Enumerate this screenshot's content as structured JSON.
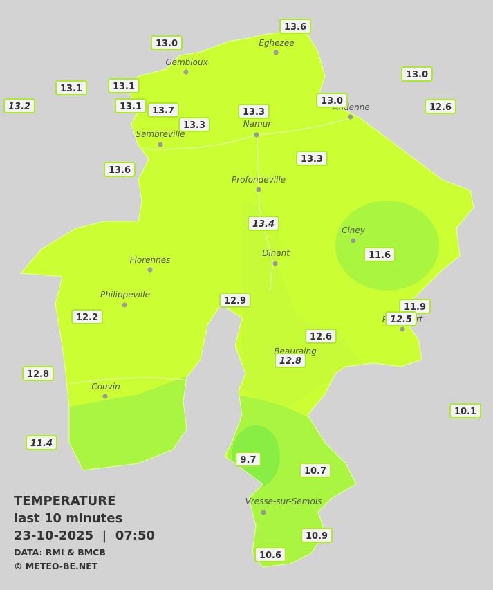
{
  "legend": {
    "title": "TEMPERATURE",
    "subtitle": "last 10 minutes",
    "datetime": "23-10-2025  |  07:50",
    "source": "DATA: RMI & BMCB",
    "copyright": "© METEO-BE.NET"
  },
  "towns": [
    "Eghezee",
    "Gembloux",
    "Andenne",
    "Namur",
    "Sambreville",
    "Profondeville",
    "Ciney",
    "Dinant",
    "Florennes",
    "Philippeville",
    "Beauraing",
    "Rochefort",
    "Couvin",
    "Vresse-sur-Semois"
  ],
  "stations": [
    "13.0",
    "13.6",
    "13.1",
    "13.1",
    "13.2",
    "13.1",
    "13.7",
    "13.3",
    "13.3",
    "13.0",
    "13.0",
    "12.6",
    "13.6",
    "13.3",
    "13.4",
    "11.6",
    "12.9",
    "11.9",
    "12.5",
    "12.2",
    "12.6",
    "12.8",
    "12.8",
    "10.1",
    "11.4",
    "9.7",
    "10.7",
    "10.9",
    "10.6"
  ]
}
